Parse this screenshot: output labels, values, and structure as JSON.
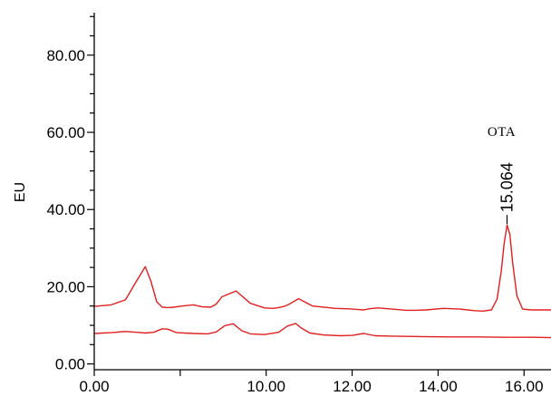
{
  "chart_data": {
    "type": "line",
    "ylabel": "EU",
    "xlim": [
      0.5,
      16.6
    ],
    "ylim": [
      -1.5,
      91
    ],
    "x_ticks": [
      0.5,
      3.53,
      6.56,
      9.59,
      12.62,
      15.65
    ],
    "x_tick_labels": [
      "0.00",
      "",
      "10.00",
      "12.00",
      "14.00",
      "16.00"
    ],
    "y_ticks": [
      0,
      5,
      10,
      15,
      20,
      25,
      30,
      35,
      40,
      45,
      50,
      55,
      60,
      65,
      70,
      75,
      80,
      85,
      90
    ],
    "y_tick_labels": {
      "0": "0.00",
      "20": "20.00",
      "40": "40.00",
      "60": "60.00",
      "80": "80.00"
    },
    "grid": false,
    "legend": "none",
    "line_color": "#e02020",
    "series": [
      {
        "x": [
          0.5,
          1.1,
          1.6,
          2.0,
          2.3,
          2.5,
          2.7,
          2.9,
          3.1,
          3.3,
          3.6,
          4.0,
          4.3,
          4.6,
          4.8,
          5.0,
          5.5,
          6.0,
          6.5,
          6.8,
          7.0,
          7.2,
          7.4,
          7.7,
          8.2,
          9.0,
          9.4,
          9.6,
          9.8,
          10.0,
          10.2,
          10.5,
          11.0,
          11.5,
          11.8,
          12.2,
          12.8,
          13.4,
          13.9,
          14.2,
          14.5,
          14.7,
          14.85,
          14.95,
          15.05,
          15.15,
          15.25,
          15.4,
          15.6,
          15.9,
          16.2,
          16.6
        ],
        "y": [
          14.9,
          15.3,
          16.6,
          21.6,
          25.2,
          21.4,
          16.1,
          14.7,
          14.6,
          14.7,
          15.0,
          15.3,
          14.8,
          14.7,
          15.5,
          17.4,
          18.9,
          15.7,
          14.5,
          14.4,
          14.6,
          14.9,
          15.6,
          16.9,
          15.0,
          14.4,
          14.3,
          14.2,
          14.1,
          14.0,
          14.3,
          14.5,
          14.2,
          13.9,
          13.9,
          14.0,
          14.4,
          14.2,
          13.8,
          13.7,
          14.0,
          16.8,
          24.2,
          31.2,
          36.0,
          33.6,
          26.2,
          17.6,
          14.2,
          14.0,
          14.0,
          14.0
        ]
      },
      {
        "x": [
          0.5,
          1.1,
          1.6,
          2.0,
          2.3,
          2.6,
          2.9,
          3.1,
          3.4,
          4.0,
          4.5,
          4.8,
          5.1,
          5.4,
          5.7,
          6.0,
          6.5,
          7.0,
          7.3,
          7.6,
          7.8,
          8.1,
          8.6,
          9.2,
          9.6,
          10.0,
          10.4,
          11.0,
          12.0,
          13.0,
          14.0,
          15.0,
          16.0,
          16.6
        ],
        "y": [
          7.9,
          8.1,
          8.4,
          8.2,
          8.0,
          8.2,
          9.1,
          9.0,
          8.1,
          7.9,
          7.8,
          8.3,
          9.9,
          10.4,
          8.6,
          7.8,
          7.6,
          8.2,
          9.8,
          10.5,
          9.3,
          8.0,
          7.5,
          7.3,
          7.4,
          7.9,
          7.3,
          7.2,
          7.1,
          7.0,
          7.0,
          6.9,
          6.9,
          6.8
        ]
      }
    ],
    "annotations": [
      {
        "name": "OTA",
        "label": "15.064",
        "x": 15.05,
        "y": 36.0
      }
    ]
  }
}
